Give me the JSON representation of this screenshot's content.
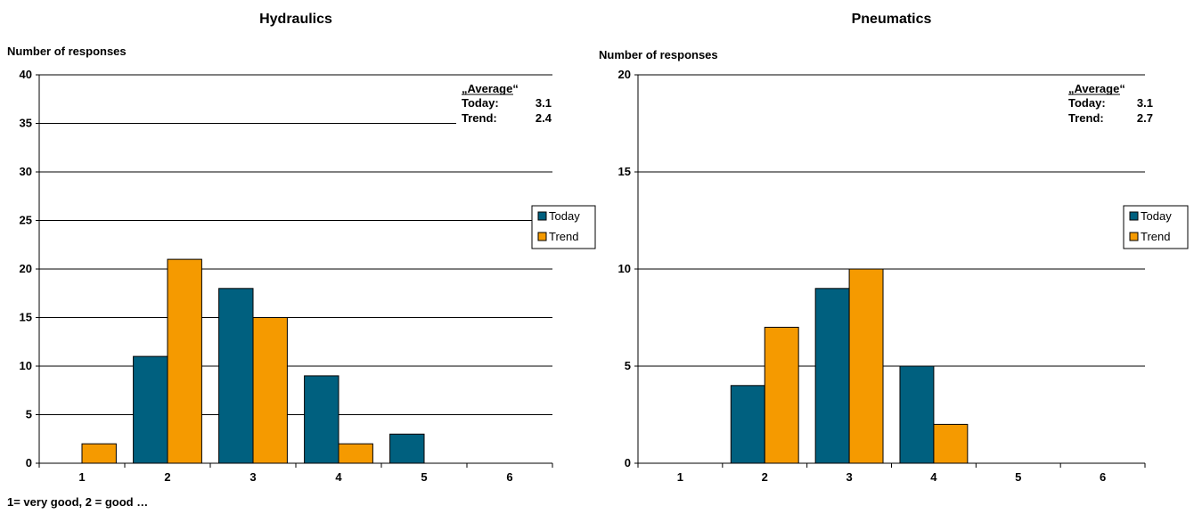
{
  "chart_data": [
    {
      "type": "bar",
      "title": "Hydraulics",
      "ylabel": "Number of responses",
      "xlabel": "",
      "categories": [
        "1",
        "2",
        "3",
        "4",
        "5",
        "6"
      ],
      "series": [
        {
          "name": "Today",
          "values": [
            0,
            11,
            18,
            9,
            3,
            0
          ]
        },
        {
          "name": "Trend",
          "values": [
            2,
            21,
            15,
            2,
            0,
            0
          ]
        }
      ],
      "ylim": [
        0,
        40
      ],
      "yticks": [
        0,
        5,
        10,
        15,
        20,
        25,
        30,
        35,
        40
      ],
      "grid": true,
      "legend": "right",
      "footnote": "1= very good, 2 = good …",
      "annotation": {
        "heading": "„Average“",
        "rows": [
          [
            "Today:",
            "3.1"
          ],
          [
            "Trend:",
            "2.4"
          ]
        ]
      }
    },
    {
      "type": "bar",
      "title": "Pneumatics",
      "ylabel": "Number of responses",
      "xlabel": "",
      "categories": [
        "1",
        "2",
        "3",
        "4",
        "5",
        "6"
      ],
      "series": [
        {
          "name": "Today",
          "values": [
            0,
            4,
            9,
            5,
            0,
            0
          ]
        },
        {
          "name": "Trend",
          "values": [
            0,
            7,
            10,
            2,
            0,
            0
          ]
        }
      ],
      "ylim": [
        0,
        20
      ],
      "yticks": [
        0,
        5,
        10,
        15,
        20
      ],
      "grid": true,
      "legend": "right",
      "footnote": "",
      "annotation": {
        "heading": "„Average“",
        "rows": [
          [
            "Today:",
            "3.1"
          ],
          [
            "Trend:",
            "2.7"
          ]
        ]
      }
    }
  ],
  "colors": {
    "today": "#00607f",
    "trend": "#f59a00",
    "grid": "#000000"
  }
}
